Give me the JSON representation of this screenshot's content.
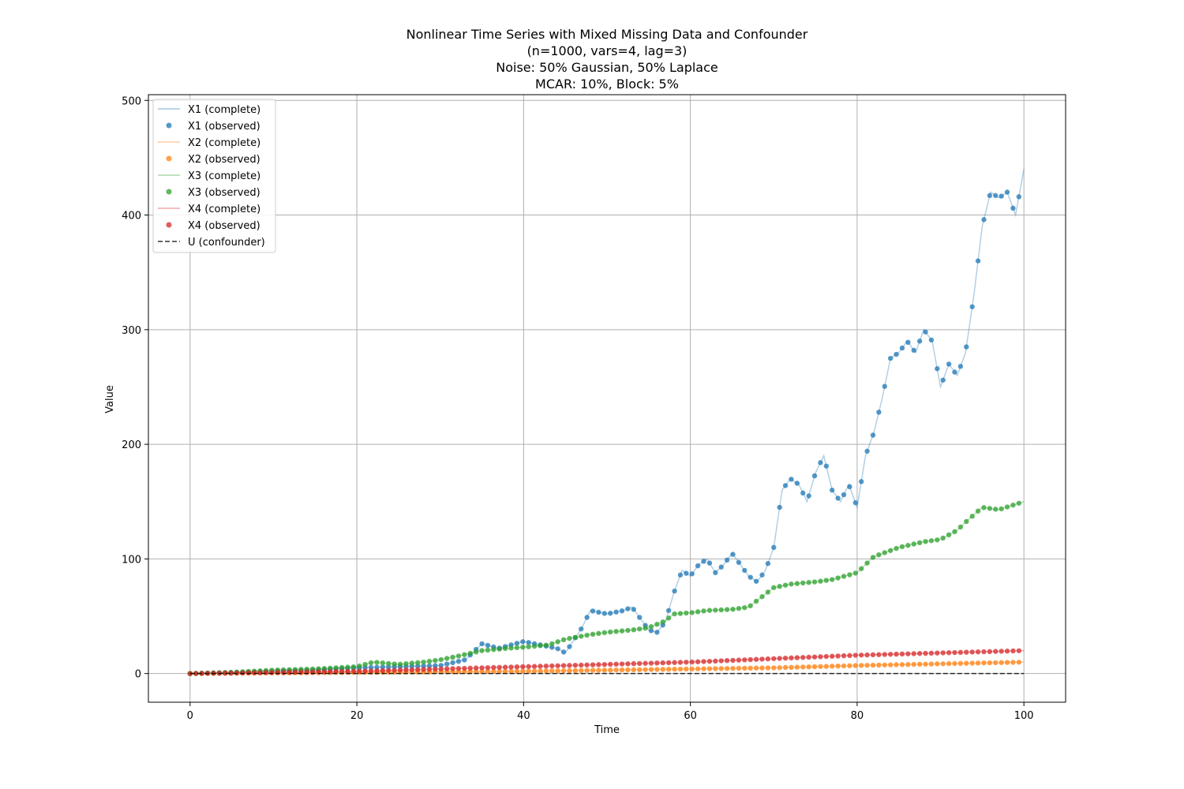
{
  "chart_data": {
    "type": "line",
    "title_lines": [
      "Nonlinear Time Series with Mixed Missing Data and Confounder",
      "(n=1000, vars=4, lag=3)",
      "Noise: 50% Gaussian, 50% Laplace",
      "MCAR: 10%, Block: 5%"
    ],
    "xlabel": "Time",
    "ylabel": "Value",
    "xlim": [
      -5,
      105
    ],
    "ylim": [
      -25,
      505
    ],
    "xticks": [
      0,
      20,
      40,
      60,
      80,
      100
    ],
    "yticks": [
      0,
      100,
      200,
      300,
      400,
      500
    ],
    "grid": true,
    "legend_position": "top-left",
    "legend": [
      {
        "label": "X1 (complete)",
        "kind": "line",
        "color": "#1f77b4"
      },
      {
        "label": "X1 (observed)",
        "kind": "marker",
        "color": "#1f77b4"
      },
      {
        "label": "X2 (complete)",
        "kind": "line",
        "color": "#ff7f0e"
      },
      {
        "label": "X2 (observed)",
        "kind": "marker",
        "color": "#ff7f0e"
      },
      {
        "label": "X3 (complete)",
        "kind": "line",
        "color": "#2ca02c"
      },
      {
        "label": "X3 (observed)",
        "kind": "marker",
        "color": "#2ca02c"
      },
      {
        "label": "X4 (complete)",
        "kind": "line",
        "color": "#d62728"
      },
      {
        "label": "X4 (observed)",
        "kind": "marker",
        "color": "#d62728"
      },
      {
        "label": "U (confounder)",
        "kind": "dashed",
        "color": "#000000"
      }
    ],
    "series": [
      {
        "name": "X1",
        "color": "#1f77b4",
        "x": [
          0,
          5,
          10,
          15,
          20,
          25,
          30,
          33,
          35,
          37,
          40,
          42,
          44,
          45,
          47,
          48,
          50,
          52,
          53,
          55,
          56,
          57,
          58,
          59,
          60,
          61,
          62,
          63,
          64,
          65,
          66,
          67,
          68,
          69,
          70,
          71,
          72,
          73,
          74,
          75,
          76,
          77,
          78,
          79,
          80,
          81,
          82,
          83,
          84,
          85,
          86,
          87,
          88,
          89,
          90,
          91,
          92,
          93,
          94,
          95,
          96,
          97,
          98,
          99,
          100
        ],
        "y": [
          0,
          1,
          2,
          3,
          5,
          6,
          7,
          12,
          26,
          22,
          28,
          25,
          22,
          18,
          40,
          55,
          52,
          55,
          58,
          38,
          36,
          45,
          70,
          90,
          85,
          95,
          100,
          88,
          95,
          105,
          95,
          85,
          80,
          90,
          110,
          160,
          170,
          165,
          150,
          175,
          190,
          160,
          150,
          165,
          145,
          190,
          210,
          240,
          275,
          280,
          290,
          280,
          300,
          290,
          250,
          270,
          260,
          280,
          330,
          390,
          420,
          415,
          420,
          400,
          440
        ]
      },
      {
        "name": "X2",
        "color": "#ff7f0e",
        "x": [
          0,
          10,
          20,
          30,
          40,
          50,
          60,
          70,
          80,
          90,
          100
        ],
        "y": [
          0,
          0.5,
          1,
          1.5,
          2,
          3,
          4,
          5,
          7,
          8.5,
          10
        ]
      },
      {
        "name": "X3",
        "color": "#2ca02c",
        "x": [
          0,
          5,
          10,
          15,
          20,
          22,
          25,
          28,
          30,
          32,
          35,
          38,
          40,
          43,
          45,
          48,
          50,
          53,
          55,
          57,
          58,
          60,
          62,
          65,
          67,
          70,
          72,
          75,
          77,
          80,
          82,
          85,
          88,
          90,
          92,
          93,
          95,
          97,
          100
        ],
        "y": [
          0,
          1,
          3,
          4,
          6,
          10,
          8,
          10,
          12,
          15,
          20,
          22,
          23,
          25,
          30,
          34,
          36,
          38,
          40,
          46,
          52,
          53,
          55,
          56,
          58,
          75,
          78,
          80,
          82,
          88,
          102,
          110,
          115,
          117,
          125,
          132,
          145,
          143,
          150
        ]
      },
      {
        "name": "X4",
        "color": "#d62728",
        "x": [
          0,
          10,
          20,
          30,
          40,
          50,
          60,
          70,
          80,
          90,
          100
        ],
        "y": [
          0,
          1,
          2,
          4,
          6,
          8,
          10,
          13,
          16,
          18,
          20
        ]
      },
      {
        "name": "U",
        "color": "#000000",
        "x": [
          0,
          100
        ],
        "y": [
          0,
          0
        ]
      }
    ]
  }
}
